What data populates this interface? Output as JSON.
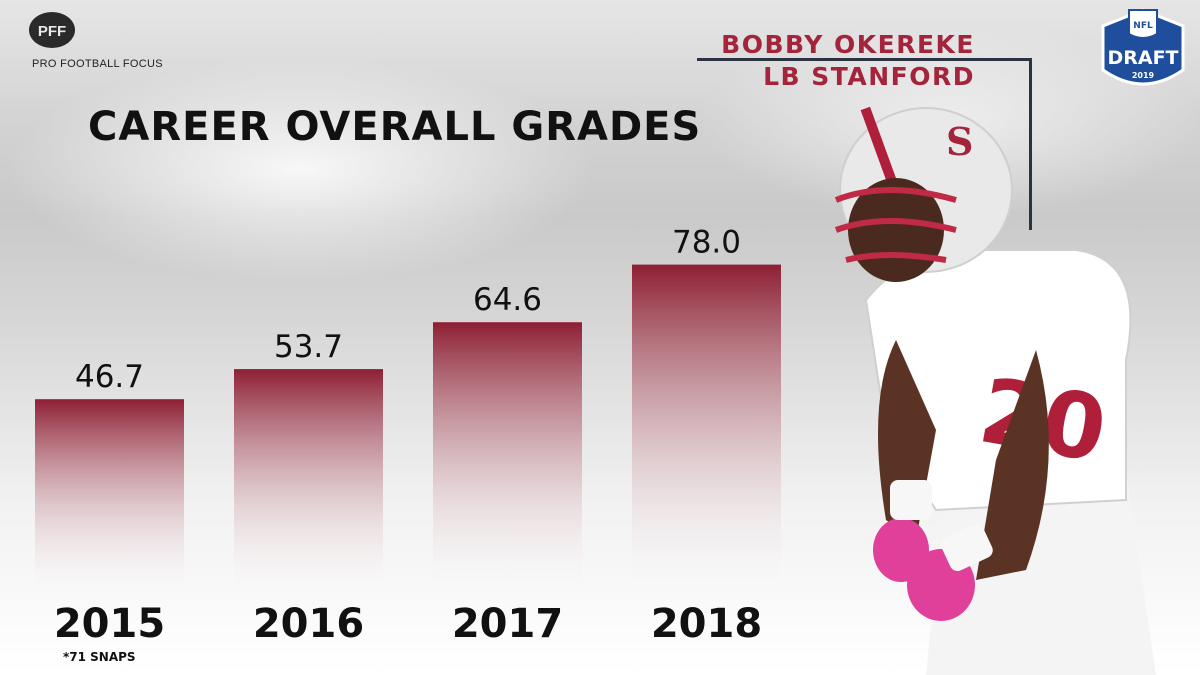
{
  "brand": {
    "logo_text": "PRO FOOTBALL FOCUS",
    "logo_mark": "PFF"
  },
  "header": {
    "player_name": "BOBBY OKEREKE",
    "player_position_team": "LB STANFORD"
  },
  "badge": {
    "nfl": "NFL",
    "draft": "DRAFT",
    "year": "2019"
  },
  "footnote": "*71 SNAPS",
  "colors": {
    "bar_top": "#8e1f33",
    "bar_bottom": "#ffffff",
    "accent": "#a3243b",
    "badge_blue": "#1f4e9c"
  },
  "chart_data": {
    "type": "bar",
    "title": "CAREER OVERALL GRADES",
    "categories": [
      "2015",
      "2016",
      "2017",
      "2018"
    ],
    "values": [
      46.7,
      53.7,
      64.6,
      78.0
    ],
    "value_labels": [
      "46.7",
      "53.7",
      "64.6",
      "78.0"
    ],
    "xlabel": "",
    "ylabel": "",
    "grid": false,
    "ylim": [
      0,
      100
    ]
  }
}
